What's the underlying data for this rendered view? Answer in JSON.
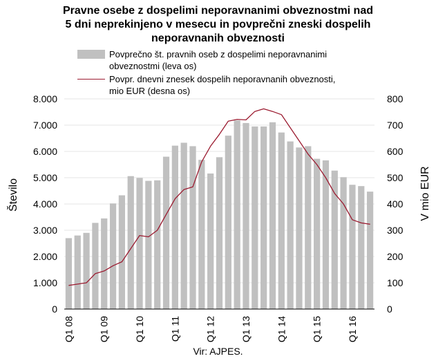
{
  "chart_data": {
    "type": "bar",
    "title_lines": [
      "Pravne osebe z dospelimi neporavnanimi obveznostmi nad",
      "5 dni neprekinjeno v mesecu in povprečni zneski dospelih",
      "neporavnanih obveznosti"
    ],
    "source": "Vir: AJPES.",
    "ylabel_left": "Število",
    "ylabel_right": "V mio EUR",
    "ylim_left": [
      0,
      8000
    ],
    "ylim_right": [
      0,
      800
    ],
    "yticks_left": [
      "0",
      "1.000",
      "2.000",
      "3.000",
      "4.000",
      "5.000",
      "6.000",
      "7.000",
      "8.000"
    ],
    "yticks_right": [
      "0",
      "100",
      "200",
      "300",
      "400",
      "500",
      "600",
      "700",
      "800"
    ],
    "x_labels": [
      {
        "index": 0,
        "label": "Q1 08"
      },
      {
        "index": 4,
        "label": "Q1 09"
      },
      {
        "index": 8,
        "label": "Q1 10"
      },
      {
        "index": 12,
        "label": "Q1 11"
      },
      {
        "index": 16,
        "label": "Q1 12"
      },
      {
        "index": 20,
        "label": "Q1 13"
      },
      {
        "index": 24,
        "label": "Q1 14"
      },
      {
        "index": 28,
        "label": "Q1 15"
      },
      {
        "index": 32,
        "label": "Q1 16"
      }
    ],
    "series": [
      {
        "name": "Povprečno št. pravnih oseb z dospelimi neporavnanimi obveznostmi (leva os)",
        "name_lines": [
          "Povprečno št. pravnih oseb z dospelimi neporavnanimi",
          "obveznostmi (leva os)"
        ],
        "type": "bar",
        "axis": "left",
        "color": "#c0c0c0",
        "values": [
          2700,
          2800,
          2900,
          3280,
          3450,
          4020,
          4330,
          5060,
          4990,
          4880,
          4900,
          5800,
          6220,
          6330,
          6200,
          5680,
          5160,
          5780,
          6600,
          7180,
          7080,
          6950,
          6950,
          7110,
          6720,
          6380,
          6150,
          6200,
          5720,
          5660,
          5270,
          5020,
          4730,
          4680,
          4470
        ]
      },
      {
        "name": "Povpr. dnevni znesek dospelih neporavnanih obveznosti, mio EUR (desna os)",
        "name_lines": [
          "Povpr. dnevni znesek dospelih neporavnanih obveznosti,",
          "mio EUR (desna os)"
        ],
        "type": "line",
        "axis": "right",
        "color": "#9b1b30",
        "values": [
          90,
          95,
          100,
          135,
          145,
          165,
          180,
          230,
          280,
          275,
          300,
          360,
          420,
          455,
          465,
          560,
          620,
          665,
          715,
          722,
          720,
          752,
          762,
          752,
          740,
          690,
          640,
          590,
          550,
          500,
          440,
          400,
          340,
          328,
          323
        ]
      }
    ]
  }
}
